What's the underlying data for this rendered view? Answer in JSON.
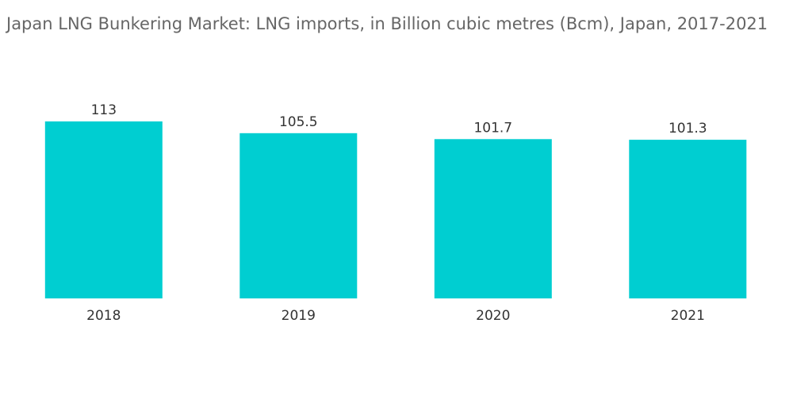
{
  "chart_data": {
    "type": "bar",
    "title": "Japan LNG Bunkering Market: LNG imports, in Billion cubic metres (Bcm), Japan, 2017-2021",
    "categories": [
      "2018",
      "2019",
      "2020",
      "2021"
    ],
    "values": [
      113,
      105.5,
      101.7,
      101.3
    ],
    "value_labels": [
      "113",
      "105.5",
      "101.7",
      "101.3"
    ],
    "xlabel": "",
    "ylabel": "",
    "ylim": [
      0,
      113
    ],
    "grid": false,
    "legend": "none",
    "bar_color": "#00CED1"
  }
}
